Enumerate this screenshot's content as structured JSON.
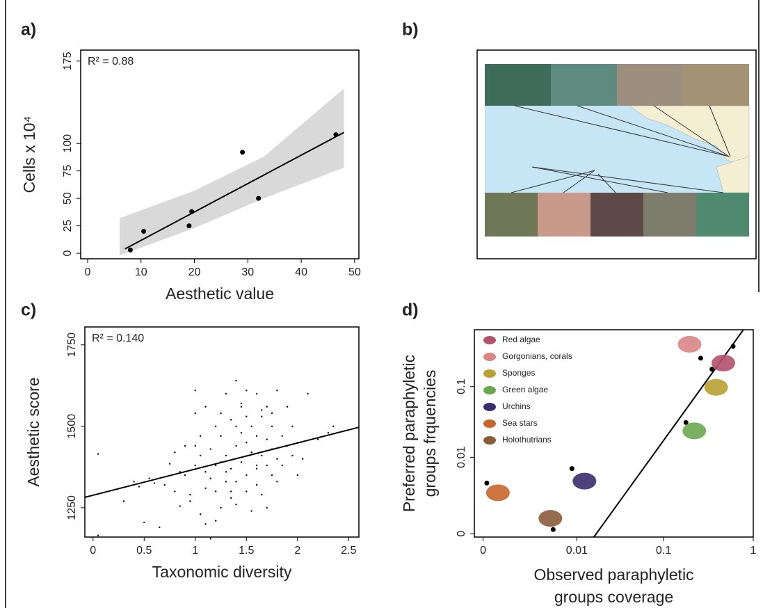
{
  "chart_data": [
    {
      "label": "a)",
      "type": "scatter",
      "annotation": "R² = 0.88",
      "xlabel": "Aesthetic value",
      "ylabel": "Cells x 10⁴",
      "x": [
        8,
        10.5,
        19,
        19.5,
        29,
        32,
        46.5
      ],
      "values": [
        3,
        20,
        25,
        38,
        92,
        50,
        108
      ],
      "color": "#000000",
      "fit_x": [
        7,
        48
      ],
      "fit_y": [
        4,
        110
      ],
      "band_x": [
        6,
        20,
        33,
        48
      ],
      "band_upper": [
        32,
        57,
        88,
        150
      ],
      "band_lower": [
        -2,
        23,
        50,
        78
      ],
      "band_color": "#d9d9d9",
      "xlim": [
        -1.3,
        50.8
      ],
      "ylim": [
        -5,
        185
      ],
      "xticks": [
        0,
        10,
        20,
        30,
        40,
        50
      ],
      "yticks": [
        0,
        25,
        50,
        75,
        100,
        175
      ]
    },
    {
      "label": "b)",
      "type": "map"
    },
    {
      "label": "c)",
      "type": "scatter",
      "annotation": "R² = 0.140",
      "xlabel": "Taxonomic diversity",
      "ylabel": "Aesthetic score",
      "x": [
        0.05,
        0.05,
        0.3,
        0.4,
        0.45,
        0.5,
        0.55,
        0.6,
        0.65,
        0.7,
        0.75,
        0.8,
        0.8,
        0.85,
        0.9,
        0.9,
        0.95,
        1.0,
        1.0,
        1.0,
        1.05,
        1.05,
        1.1,
        1.1,
        1.1,
        1.15,
        1.15,
        1.2,
        1.2,
        1.2,
        1.25,
        1.25,
        1.25,
        1.3,
        1.3,
        1.3,
        1.35,
        1.35,
        1.35,
        1.4,
        1.4,
        1.4,
        1.4,
        1.45,
        1.45,
        1.45,
        1.5,
        1.5,
        1.5,
        1.5,
        1.55,
        1.55,
        1.55,
        1.6,
        1.6,
        1.6,
        1.6,
        1.65,
        1.65,
        1.65,
        1.7,
        1.7,
        1.7,
        1.75,
        1.75,
        1.75,
        1.8,
        1.8,
        1.8,
        1.85,
        1.85,
        1.9,
        1.9,
        1.95,
        1.95,
        2.0,
        2.0,
        2.05,
        2.1,
        2.2,
        2.3,
        2.35,
        1.0,
        1.2,
        1.3,
        1.5,
        1.6,
        1.15,
        1.45,
        0.95,
        1.05,
        1.25,
        1.35,
        1.55,
        1.7,
        1.4,
        1.65,
        0.85,
        1.1,
        1.75
      ],
      "values": [
        1415,
        1165,
        1270,
        1330,
        1315,
        1205,
        1340,
        1325,
        1190,
        1320,
        1385,
        1420,
        1300,
        1255,
        1440,
        1350,
        1290,
        1540,
        1610,
        1380,
        1470,
        1230,
        1360,
        1560,
        1200,
        1155,
        1430,
        1300,
        1500,
        1380,
        1250,
        1470,
        1540,
        1330,
        1600,
        1410,
        1280,
        1370,
        1520,
        1440,
        1640,
        1330,
        1260,
        1480,
        1390,
        1570,
        1300,
        1450,
        1610,
        1350,
        1500,
        1240,
        1420,
        1380,
        1600,
        1470,
        1320,
        1530,
        1410,
        1290,
        1460,
        1380,
        1560,
        1350,
        1500,
        1430,
        1610,
        1400,
        1330,
        1470,
        1380,
        1560,
        1440,
        1500,
        1410,
        1450,
        1350,
        1400,
        1600,
        1460,
        1480,
        1500,
        1440,
        1210,
        1360,
        1530,
        1370,
        1340,
        1560,
        1270,
        1410,
        1390,
        1300,
        1420,
        1250,
        1500,
        1550,
        1360,
        1310,
        1540
      ],
      "color": "#000000",
      "fit_x": [
        -0.08,
        2.6
      ],
      "fit_y": [
        1282,
        1497
      ],
      "xlim": [
        -0.08,
        2.6
      ],
      "ylim": [
        1160,
        1805
      ],
      "xticks": [
        0,
        0.5,
        1,
        1.5,
        2,
        2.5
      ],
      "yticks": [
        1250,
        1500,
        1750
      ]
    },
    {
      "label": "d)",
      "type": "scatter",
      "xscale": "log",
      "yscale": "log",
      "xlabel": [
        "Observed paraphyletic",
        "groups coverage"
      ],
      "ylabel": [
        "Preferred paraphyletic",
        "groups frquencies"
      ],
      "categories": [
        "Red algae",
        "Gorgonians, corals",
        "Sponges",
        "Green algae",
        "Urchins",
        "Sea stars",
        "Holothutrians"
      ],
      "colors": [
        "#b5506e",
        "#d98585",
        "#b8a132",
        "#6aa84f",
        "#3a2d6e",
        "#c8662a",
        "#8a5a3a"
      ],
      "x": [
        0.597,
        0.26,
        0.347,
        0.178,
        0.0087,
        0.0001,
        0.005
      ],
      "values": [
        0.356,
        0.245,
        0.173,
        0.0317,
        0.0067,
        0.0039,
        0.00014
      ],
      "color": "#000000",
      "fit_x": [
        0.016,
        0.77
      ],
      "fit_y": [
        -0.0001,
        0.59
      ],
      "xlim": [
        -0.0002,
        1
      ],
      "ylim": [
        -0.0001,
        0.6
      ],
      "xticks": [
        0,
        0.01,
        0.1,
        1
      ],
      "yticks": [
        0,
        0.01,
        0.1
      ]
    }
  ]
}
